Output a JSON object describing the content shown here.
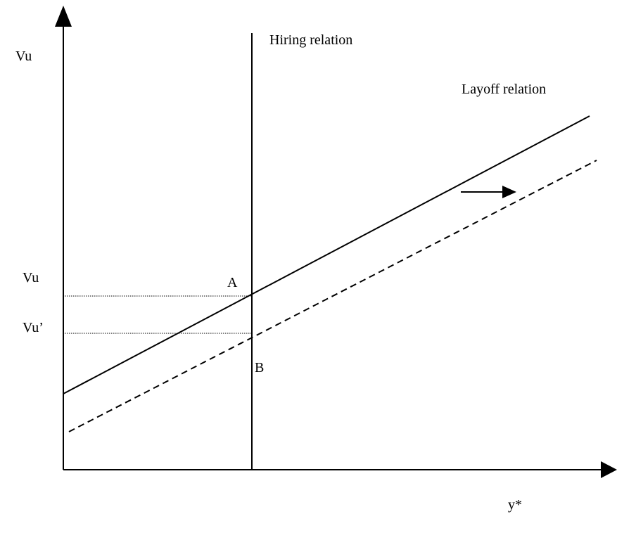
{
  "axes": {
    "y_label": "Vu",
    "x_label": "y*"
  },
  "curves": {
    "hiring": "Hiring relation",
    "layoff": "Layoff relation"
  },
  "levels": [
    "Vu",
    "Vu’"
  ],
  "points": [
    "A",
    "B"
  ]
}
